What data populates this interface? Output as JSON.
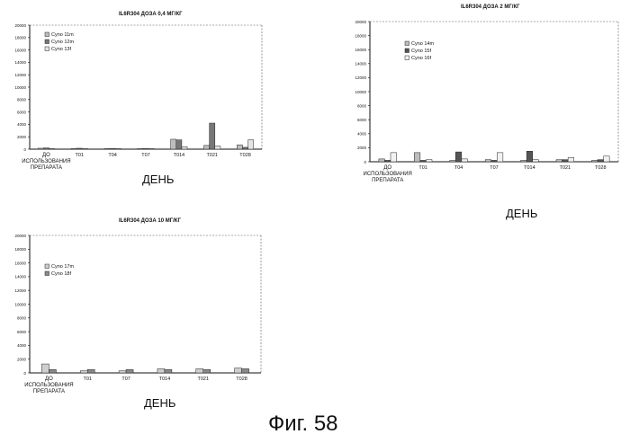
{
  "figure_caption": "Фиг. 58",
  "chart_data": [
    {
      "type": "bar",
      "title": "IL6R304 ДОЗА 0,4 МГ/КГ",
      "xlabel": "ДЕНЬ",
      "ylabel": "",
      "ylim": [
        0,
        20000
      ],
      "yticks": [
        "0",
        "2000",
        "4000",
        "6000",
        "8000",
        "10000",
        "12000",
        "14000",
        "16000",
        "18000",
        "20000"
      ],
      "categories": [
        "ДО ИСПОЛЬЗОВАНИЯ ПРЕПАРАТА",
        "T01",
        "T04",
        "T07",
        "T014",
        "T021",
        "T028"
      ],
      "legend_position": "top-left",
      "series": [
        {
          "name": "Cyno 11m",
          "color": "#bdbdbd",
          "values": [
            150,
            100,
            100,
            120,
            1600,
            600,
            700
          ]
        },
        {
          "name": "Cyno 12m",
          "color": "#777777",
          "values": [
            200,
            150,
            100,
            100,
            1500,
            4200,
            300
          ]
        },
        {
          "name": "Cyno 13f",
          "color": "#e4e4e4",
          "values": [
            100,
            100,
            100,
            100,
            400,
            500,
            1500
          ]
        }
      ]
    },
    {
      "type": "bar",
      "title": "IL6R304 ДОЗА 2 МГ/КГ",
      "xlabel": "ДЕНЬ",
      "ylabel": "",
      "ylim": [
        0,
        20000
      ],
      "yticks": [
        "0",
        "2000",
        "4000",
        "6000",
        "8000",
        "10000",
        "12000",
        "14000",
        "16000",
        "18000",
        "20000"
      ],
      "categories": [
        "ДО ИСПОЛЬЗОВАНИЯ ПРЕПАРАТА",
        "T01",
        "T04",
        "T07",
        "T014",
        "T021",
        "T028"
      ],
      "legend_position": "top-left",
      "series": [
        {
          "name": "Cyno 14m",
          "color": "#bdbdbd",
          "values": [
            400,
            1300,
            200,
            300,
            200,
            300,
            200
          ]
        },
        {
          "name": "Cyno 15f",
          "color": "#555555",
          "values": [
            200,
            200,
            1400,
            200,
            1500,
            300,
            300
          ]
        },
        {
          "name": "Cyno 16f",
          "color": "#f2f2f2",
          "values": [
            1300,
            300,
            400,
            1300,
            300,
            600,
            800
          ]
        }
      ]
    },
    {
      "type": "bar",
      "title": "IL6R304 ДОЗА 10 МГ/КГ",
      "xlabel": "ДЕНЬ",
      "ylabel": "",
      "ylim": [
        0,
        20000
      ],
      "yticks": [
        "0",
        "2000",
        "4000",
        "6000",
        "8000",
        "10000",
        "12000",
        "14000",
        "16000",
        "18000",
        "20000"
      ],
      "categories": [
        "ДО ИСПОЛЬЗОВАНИЯ ПРЕПАРАТА",
        "T01",
        "T07",
        "T014",
        "T021",
        "T028"
      ],
      "legend_position": "top-left",
      "series": [
        {
          "name": "Cyno 17m",
          "color": "#cfcfcf",
          "values": [
            1300,
            300,
            300,
            600,
            600,
            700
          ]
        },
        {
          "name": "Cyno 18f",
          "color": "#8a8a8a",
          "values": [
            500,
            500,
            500,
            500,
            500,
            600
          ]
        }
      ]
    }
  ]
}
